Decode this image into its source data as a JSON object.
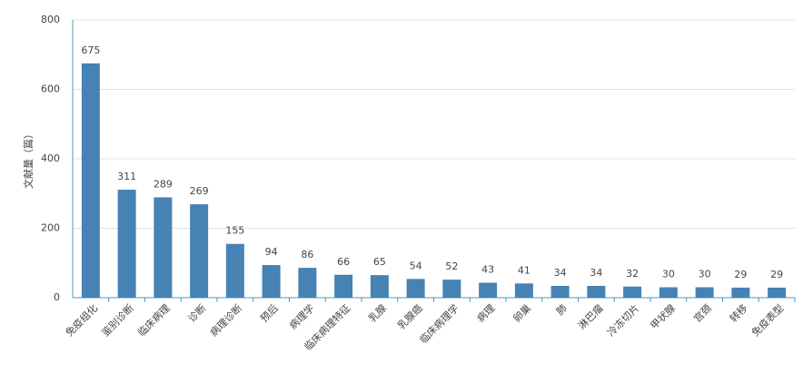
{
  "chart_data": {
    "type": "bar",
    "y_label": "文献量（篇）",
    "categories": [
      "免疫组化",
      "鉴别诊断",
      "临床病理",
      "诊断",
      "病理诊断",
      "预后",
      "病理学",
      "临床病理特征",
      "乳腺",
      "乳腺癌",
      "临床病理学",
      "病理",
      "卵巢",
      "肺",
      "淋巴瘤",
      "冷冻切片",
      "甲状腺",
      "宫颈",
      "转移",
      "免疫表型"
    ],
    "values": [
      675,
      311,
      289,
      269,
      155,
      94,
      86,
      66,
      65,
      54,
      52,
      43,
      41,
      34,
      34,
      32,
      30,
      30,
      29,
      29
    ],
    "color": "#4682b4",
    "ylim": [
      0,
      800
    ],
    "yticks": [
      0,
      200,
      400,
      600,
      800
    ],
    "grid": true
  }
}
